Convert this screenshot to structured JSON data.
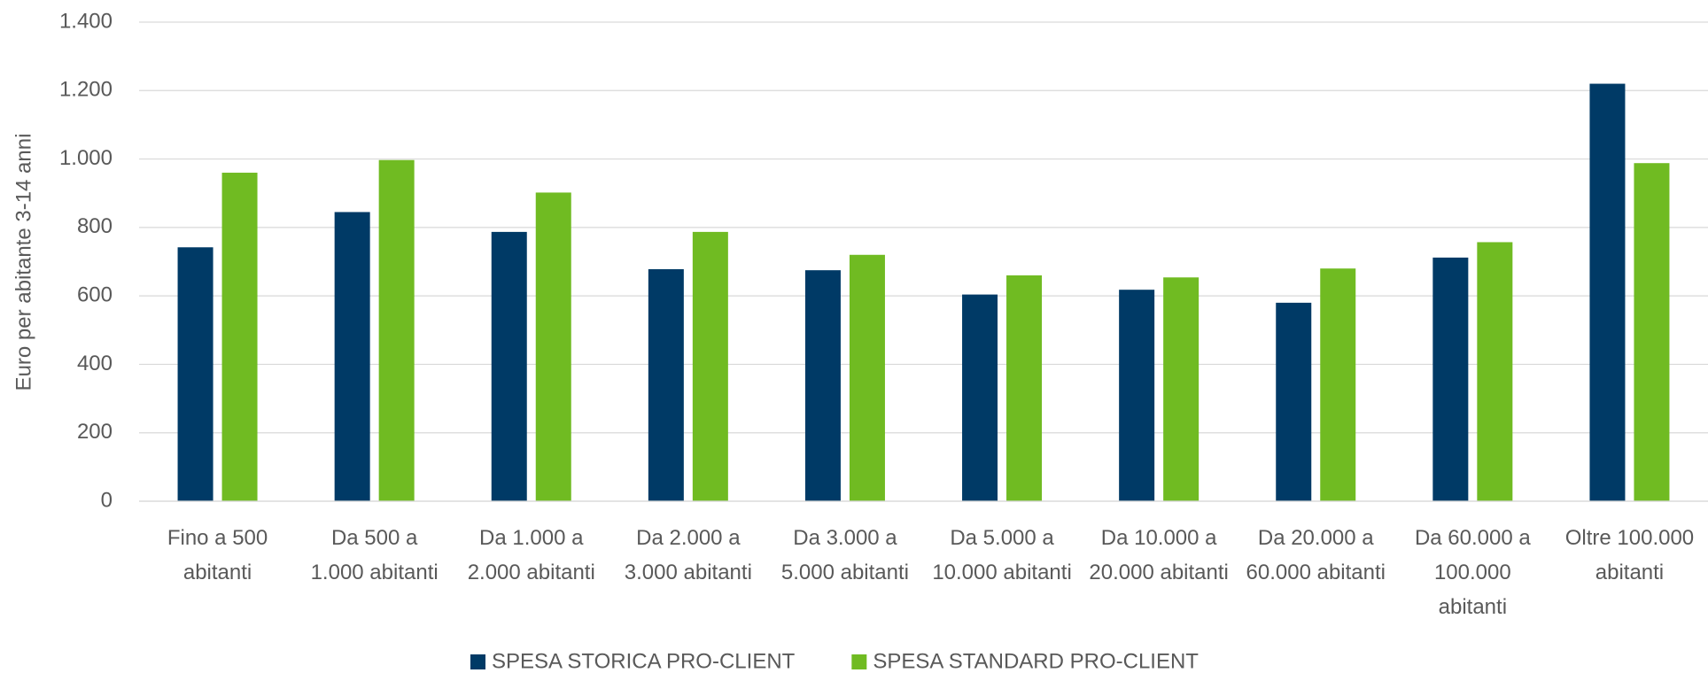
{
  "chart_data": {
    "type": "bar",
    "y_label": "Euro per abitante 3-14 anni",
    "categories": [
      "Fino a 500 abitanti",
      "Da 500 a 1.000 abitanti",
      "Da 1.000 a 2.000 abitanti",
      "Da 2.000 a 3.000 abitanti",
      "Da 3.000 a 5.000 abitanti",
      "Da 5.000 a 10.000 abitanti",
      "Da 10.000 a 20.000 abitanti",
      "Da 20.000 a 60.000 abitanti",
      "Da 60.000 a 100.000 abitanti",
      "Oltre 100.000 abitanti"
    ],
    "series": [
      {
        "name": "SPESA STORICA PRO-CLIENT",
        "color": "#003a66",
        "values": [
          742,
          845,
          787,
          678,
          675,
          604,
          618,
          580,
          712,
          1220
        ]
      },
      {
        "name": "SPESA STANDARD PRO-CLIENT",
        "color": "#70bb22",
        "values": [
          960,
          997,
          902,
          787,
          720,
          660,
          654,
          680,
          757,
          988
        ]
      }
    ],
    "ylim": [
      0,
      1400
    ],
    "yticks": [
      0,
      200,
      400,
      600,
      800,
      {
        "value": 1000,
        "label": "1.000"
      },
      {
        "value": 1200,
        "label": "1.200"
      },
      {
        "value": 1400,
        "label": "1.400"
      }
    ],
    "grid": true,
    "legend": "bottom"
  }
}
